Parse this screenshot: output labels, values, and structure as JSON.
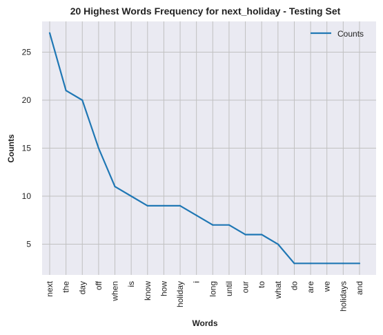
{
  "chart_data": {
    "type": "line",
    "title": "20 Highest Words Frequency for next_holiday - Testing Set",
    "xlabel": "Words",
    "ylabel": "Counts",
    "categories": [
      "next",
      "the",
      "day",
      "off",
      "when",
      "is",
      "know",
      "how",
      "holiday",
      "i",
      "long",
      "until",
      "our",
      "to",
      "what",
      "do",
      "are",
      "we",
      "holidays",
      "and"
    ],
    "series": [
      {
        "name": "Counts",
        "values": [
          27,
          21,
          20,
          15,
          11,
          10,
          9,
          9,
          9,
          8,
          7,
          7,
          6,
          6,
          5,
          3,
          3,
          3,
          3,
          3
        ]
      }
    ],
    "yticks": [
      5,
      10,
      15,
      20,
      25
    ],
    "ylim": [
      1.8,
      28.2
    ],
    "grid": true,
    "legend_position": "top-right",
    "colors": {
      "line": "#1f77b4",
      "background": "#eaeaf2",
      "grid": "#c0c0c0",
      "text": "#222222"
    }
  }
}
